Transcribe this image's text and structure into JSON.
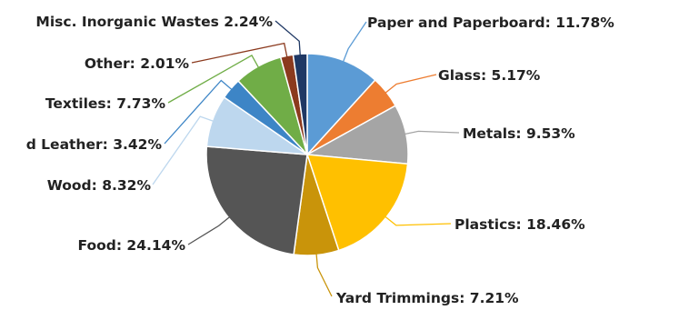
{
  "chart_data": {
    "type": "pie",
    "title": "",
    "start_angle_deg": 0,
    "direction": "clockwise",
    "slices": [
      {
        "label": "Paper and Paperboard: 11.78%",
        "value": 11.78,
        "color": "#5b9bd5"
      },
      {
        "label": "Glass: 5.17%",
        "value": 5.17,
        "color": "#ed7d31"
      },
      {
        "label": "Metals: 9.53%",
        "value": 9.53,
        "color": "#a5a5a5"
      },
      {
        "label": "Plastics: 18.46%",
        "value": 18.46,
        "color": "#ffc000"
      },
      {
        "label": "Yard Trimmings: 7.21%",
        "value": 7.21,
        "color": "#c9940a"
      },
      {
        "label": "Food: 24.14%",
        "value": 24.14,
        "color": "#555555"
      },
      {
        "label": "Wood: 8.32%",
        "value": 8.32,
        "color": "#bdd7ee"
      },
      {
        "label": "d Leather: 3.42%",
        "value": 3.42,
        "color": "#3d85c6"
      },
      {
        "label": "Textiles: 7.73%",
        "value": 7.73,
        "color": "#70ad47"
      },
      {
        "label": "Other: 2.01%",
        "value": 2.01,
        "color": "#8b3a1e"
      },
      {
        "label": "Misc. Inorganic Wastes 2.24%",
        "value": 2.24,
        "color": "#1f3864"
      }
    ]
  }
}
